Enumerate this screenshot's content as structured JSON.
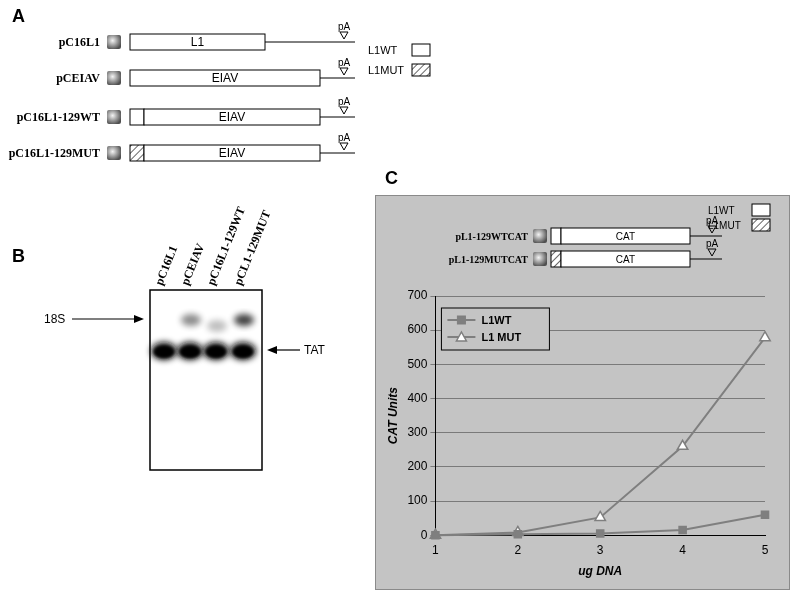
{
  "panel_a": {
    "label": "A",
    "constructs": [
      {
        "name": "pC16L1",
        "segments": [
          {
            "text": "L1",
            "kind": "wt"
          }
        ]
      },
      {
        "name": "pCEIAV",
        "segments": [
          {
            "text": "EIAV"
          }
        ]
      },
      {
        "name": "pC16L1-129WT",
        "segments": [
          {
            "kind": "wt"
          },
          {
            "text": "EIAV"
          }
        ]
      },
      {
        "name": "pC16L1-129MUT",
        "segments": [
          {
            "kind": "mut"
          },
          {
            "text": "EIAV"
          }
        ]
      }
    ],
    "poly_a": "pA",
    "key": [
      {
        "label": "L1WT",
        "kind": "wt"
      },
      {
        "label": "L1MUT",
        "kind": "mut"
      }
    ]
  },
  "panel_b": {
    "label": "B",
    "lanes": [
      "pC16L1",
      "pCEIAV",
      "pC16L1-129WT",
      "pCL1-129MUT"
    ],
    "marker_left": "18S",
    "marker_right": "TAT"
  },
  "panel_c": {
    "label": "C",
    "inset": {
      "constructs": [
        {
          "name": "pL1-129WTCAT",
          "segments": [
            {
              "kind": "wt"
            },
            {
              "text": "CAT"
            }
          ]
        },
        {
          "name": "pL1-129MUTCAT",
          "segments": [
            {
              "kind": "mut"
            },
            {
              "text": "CAT"
            }
          ]
        }
      ],
      "poly_a": "pA",
      "key": [
        {
          "label": "L1WT",
          "kind": "wt"
        },
        {
          "label": "L1MUT",
          "kind": "mut"
        }
      ]
    }
  },
  "chart_data": {
    "type": "line",
    "x_label": "ug DNA",
    "y_label": "CAT Units",
    "x": [
      1,
      2,
      3,
      4,
      5
    ],
    "xlim": [
      1,
      5
    ],
    "xticks": [
      1,
      2,
      3,
      4,
      5
    ],
    "ylim": [
      0,
      700
    ],
    "yticks": [
      0,
      100,
      200,
      300,
      400,
      500,
      600,
      700
    ],
    "grid": true,
    "legend": "upper left",
    "series": [
      {
        "name": "L1WT",
        "color": "#7f7f7f",
        "marker": "square",
        "values": [
          0,
          3,
          5,
          15,
          60
        ]
      },
      {
        "name": "L1 MUT",
        "color": "#7f7f7f",
        "marker": "triangle",
        "values": [
          0,
          8,
          52,
          260,
          578
        ]
      }
    ]
  }
}
